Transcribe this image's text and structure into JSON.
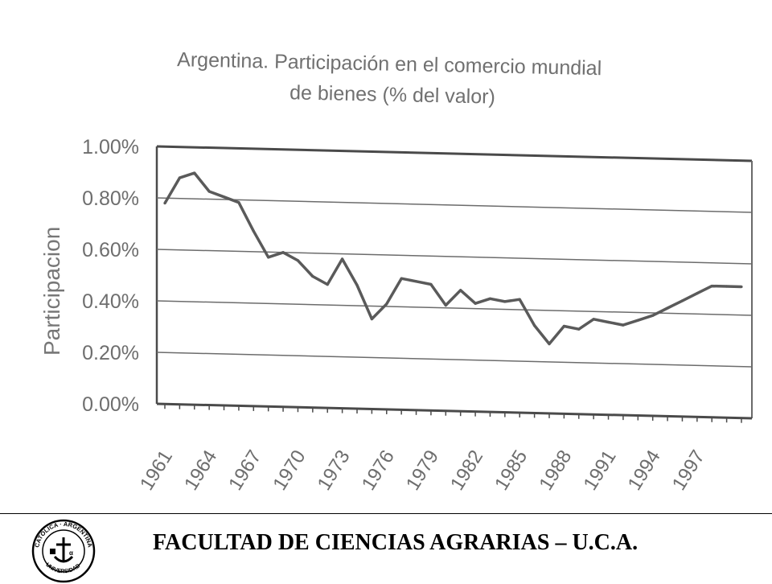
{
  "chart_data": {
    "type": "line",
    "title": "Argentina. Participación en el comercio mundial",
    "subtitle": "de bienes (% del valor)",
    "ylabel": "Participacion",
    "xlabel": "",
    "ylim": [
      0,
      1
    ],
    "yticks": [
      "1.00%",
      "0.80%",
      "0.60%",
      "0.40%",
      "0.20%",
      "0.00%"
    ],
    "ytick_values": [
      1.0,
      0.8,
      0.6,
      0.4,
      0.2,
      0.0
    ],
    "xticks": [
      "1961",
      "1964",
      "1967",
      "1970",
      "1973",
      "1976",
      "1979",
      "1982",
      "1985",
      "1988",
      "1991",
      "1994",
      "1997"
    ],
    "grid": true,
    "legend": "none",
    "x": [
      1961,
      1962,
      1963,
      1964,
      1965,
      1966,
      1967,
      1968,
      1969,
      1970,
      1971,
      1972,
      1973,
      1974,
      1975,
      1976,
      1977,
      1978,
      1979,
      1980,
      1981,
      1982,
      1983,
      1984,
      1985,
      1986,
      1987,
      1988,
      1989,
      1990,
      1991,
      1992,
      1993,
      1994,
      1995,
      1996,
      1997,
      1998,
      1999,
      2000
    ],
    "values": [
      0.78,
      0.88,
      0.9,
      0.83,
      0.81,
      0.79,
      0.68,
      0.58,
      0.6,
      0.57,
      0.51,
      0.48,
      0.58,
      0.48,
      0.35,
      0.41,
      0.51,
      0.5,
      0.49,
      0.41,
      0.47,
      0.42,
      0.44,
      0.43,
      0.44,
      0.34,
      0.27,
      0.34,
      0.33,
      0.37,
      0.36,
      0.35,
      0.37,
      0.39,
      0.42,
      0.45,
      0.48,
      0.51,
      0.51,
      0.51
    ],
    "line_color": "#5a5a5a"
  },
  "footer": {
    "text": "FACULTAD DE CIENCIAS AGRARIAS – U.C.A.",
    "logo_text": "UNIVERSIDAD CATÓLICA ARGENTINA"
  }
}
